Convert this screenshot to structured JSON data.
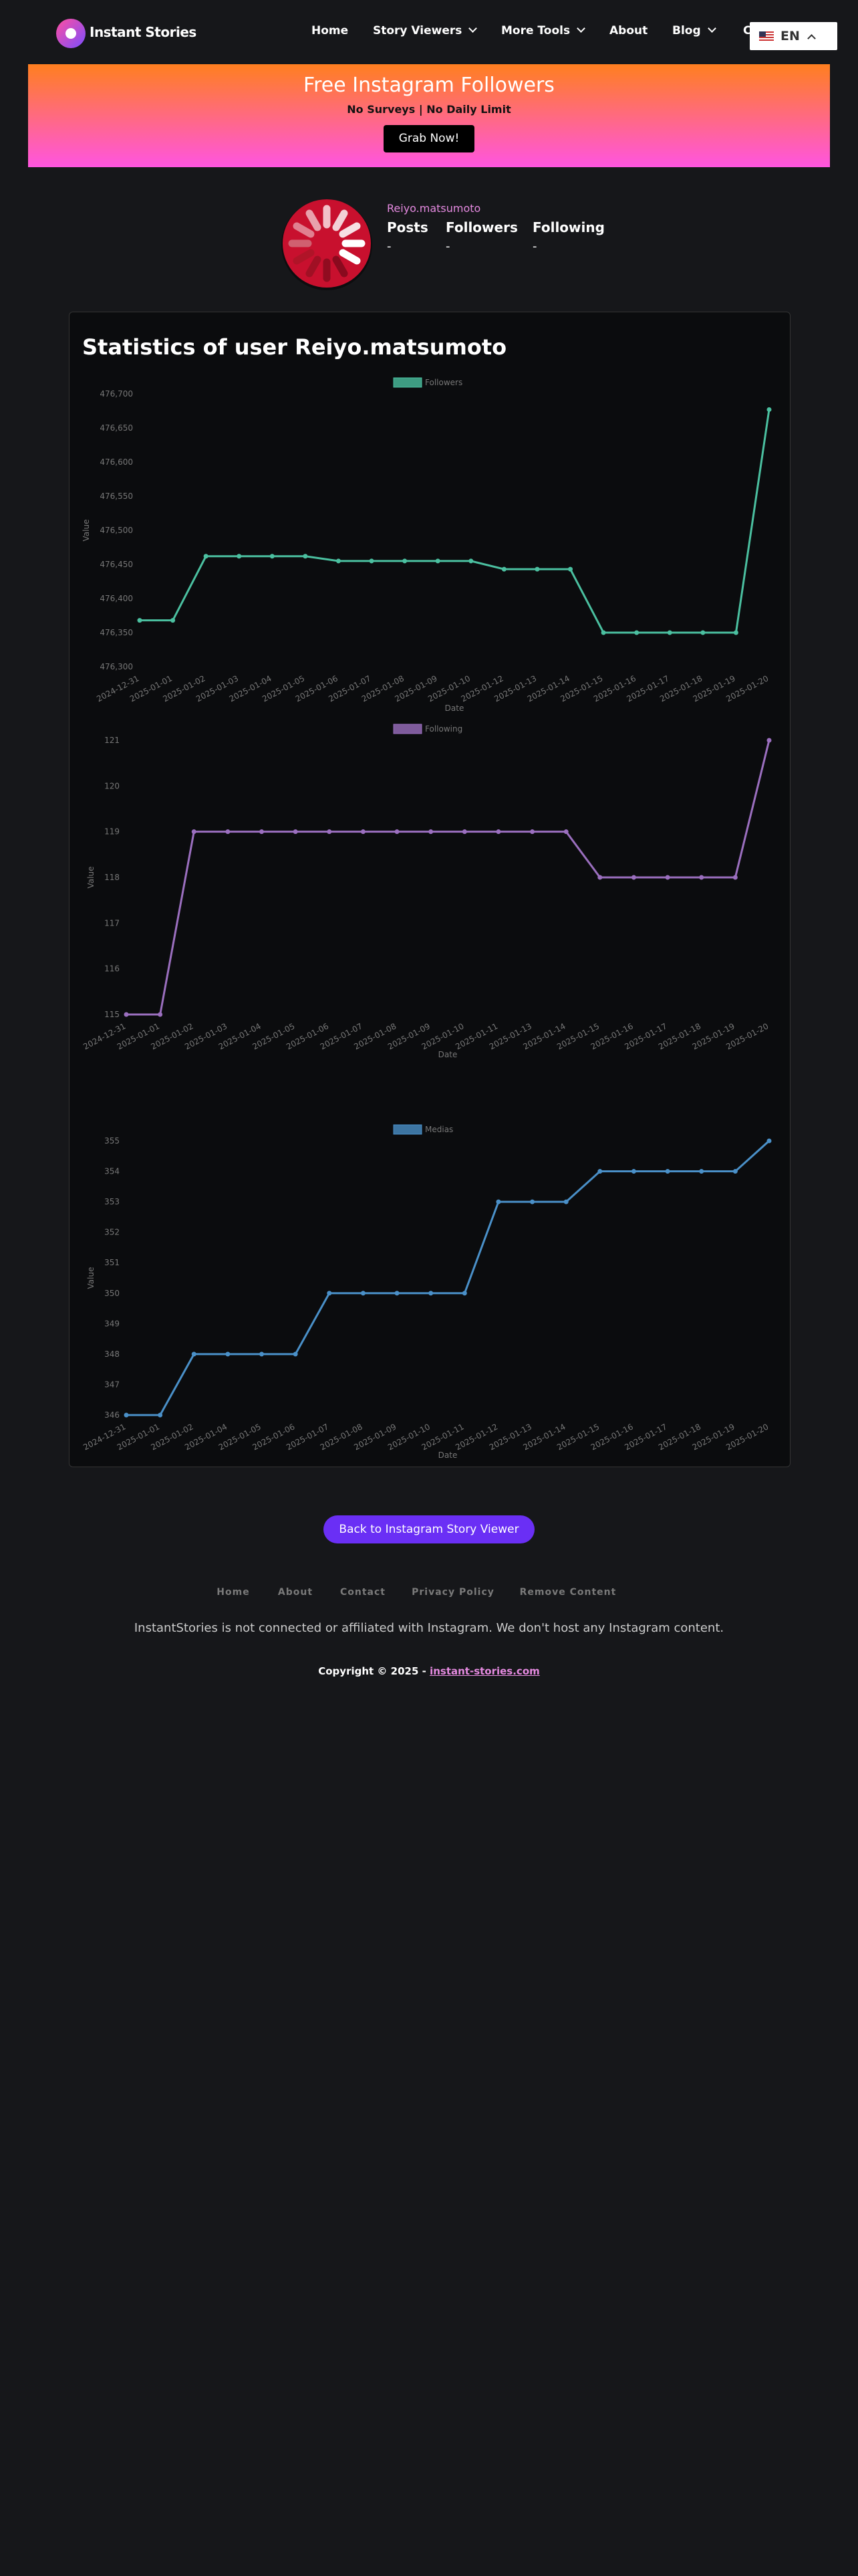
{
  "nav": {
    "brand": "Instant Stories",
    "items": [
      "Home",
      "Story Viewers",
      "More Tools",
      "About",
      "Blog",
      "C"
    ],
    "language": "EN"
  },
  "banner": {
    "title": "Free Instagram Followers",
    "subtitle": "No Surveys | No Daily Limit",
    "button": "Grab Now!"
  },
  "profile": {
    "username": "Reiyo.matsumoto",
    "stats": [
      {
        "label": "Posts",
        "value": "-"
      },
      {
        "label": "Followers",
        "value": "-"
      },
      {
        "label": "Following",
        "value": "-"
      }
    ]
  },
  "stats_title": "Statistics of user Reiyo.matsumoto",
  "chart_data": [
    {
      "type": "line",
      "xlabel": "Date",
      "ylabel": "Value",
      "categories": [
        "2024-12-31",
        "2025-01-01",
        "2025-01-02",
        "2025-01-03",
        "2025-01-04",
        "2025-01-05",
        "2025-01-06",
        "2025-01-07",
        "2025-01-08",
        "2025-01-09",
        "2025-01-10",
        "2025-01-12",
        "2025-01-13",
        "2025-01-14",
        "2025-01-15",
        "2025-01-16",
        "2025-01-17",
        "2025-01-18",
        "2025-01-19",
        "2025-01-20"
      ],
      "series": [
        {
          "name": "Followers",
          "color": "#4bc0a0",
          "values": [
            476368,
            476368,
            476462,
            476462,
            476462,
            476462,
            476455,
            476455,
            476455,
            476455,
            476455,
            476443,
            476443,
            476443,
            476350,
            476350,
            476350,
            476350,
            476350,
            476677
          ]
        }
      ],
      "ylim": [
        476300,
        476700
      ],
      "yticks": [
        {
          "value": 476300,
          "label": "476,300"
        },
        {
          "value": 476350,
          "label": "476,350"
        },
        {
          "value": 476400,
          "label": "476,400"
        },
        {
          "value": 476450,
          "label": "476,450"
        },
        {
          "value": 476500,
          "label": "476,500"
        },
        {
          "value": 476550,
          "label": "476,550"
        },
        {
          "value": 476600,
          "label": "476,600"
        },
        {
          "value": 476650,
          "label": "476,650"
        },
        {
          "value": 476700,
          "label": "476,700"
        }
      ]
    },
    {
      "type": "line",
      "xlabel": "Date",
      "ylabel": "Value",
      "categories": [
        "2024-12-31",
        "2025-01-01",
        "2025-01-02",
        "2025-01-03",
        "2025-01-04",
        "2025-01-05",
        "2025-01-06",
        "2025-01-07",
        "2025-01-08",
        "2025-01-09",
        "2025-01-10",
        "2025-01-11",
        "2025-01-13",
        "2025-01-14",
        "2025-01-15",
        "2025-01-16",
        "2025-01-17",
        "2025-01-18",
        "2025-01-19",
        "2025-01-20"
      ],
      "series": [
        {
          "name": "Following",
          "color": "#9b6fbf",
          "values": [
            115,
            115,
            119,
            119,
            119,
            119,
            119,
            119,
            119,
            119,
            119,
            119,
            119,
            119,
            118,
            118,
            118,
            118,
            118,
            121
          ]
        }
      ],
      "ylim": [
        115,
        121
      ],
      "yticks": [
        115,
        116,
        117,
        118,
        119,
        120,
        121
      ]
    },
    {
      "type": "line",
      "xlabel": "Date",
      "ylabel": "Value",
      "categories": [
        "2024-12-31",
        "2025-01-01",
        "2025-01-02",
        "2025-01-04",
        "2025-01-05",
        "2025-01-06",
        "2025-01-07",
        "2025-01-08",
        "2025-01-09",
        "2025-01-10",
        "2025-01-11",
        "2025-01-12",
        "2025-01-13",
        "2025-01-14",
        "2025-01-15",
        "2025-01-16",
        "2025-01-17",
        "2025-01-18",
        "2025-01-19",
        "2025-01-20"
      ],
      "series": [
        {
          "name": "Medias",
          "color": "#4a90c8",
          "values": [
            346,
            346,
            348,
            348,
            348,
            348,
            350,
            350,
            350,
            350,
            350,
            353,
            353,
            353,
            354,
            354,
            354,
            354,
            354,
            355
          ]
        }
      ],
      "ylim": [
        346,
        355
      ],
      "yticks": [
        346,
        347,
        348,
        349,
        350,
        351,
        352,
        353,
        354,
        355
      ]
    }
  ],
  "back_button": "Back to Instagram Story Viewer",
  "footer": {
    "links": [
      "Home",
      "About",
      "Contact",
      "Privacy Policy",
      "Remove Content"
    ],
    "disclaimer": "InstantStories is not connected or affiliated with Instagram. We don't host any Instagram content.",
    "copyright": "Copyright © 2025 -",
    "site": "instant-stories.com"
  }
}
